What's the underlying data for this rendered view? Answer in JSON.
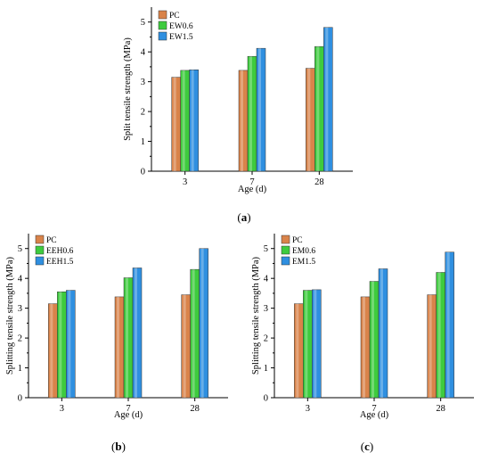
{
  "colors": {
    "PC": "#d9834a",
    "S1": "#3ecb3e",
    "S2": "#2f8fe0",
    "axis": "#000000"
  },
  "chart_data": [
    {
      "type": "bar",
      "panel_label": "(a)",
      "categories": [
        "3",
        "7",
        "28"
      ],
      "xlabel": "Age (d)",
      "ylabel": "Split tensile strength (MPa)",
      "ylim": [
        0,
        5.5
      ],
      "yticks": [
        "0",
        "1",
        "2",
        "3",
        "4",
        "5"
      ],
      "legend": "top-left",
      "series": [
        {
          "name": "PC",
          "values": [
            3.15,
            3.38,
            3.45
          ]
        },
        {
          "name": "EW0.6",
          "values": [
            3.38,
            3.85,
            4.18
          ]
        },
        {
          "name": "EW1.5",
          "values": [
            3.4,
            4.12,
            4.82
          ]
        }
      ]
    },
    {
      "type": "bar",
      "panel_label": "(b)",
      "categories": [
        "3",
        "7",
        "28"
      ],
      "xlabel": "Age (d)",
      "ylabel": "Splitting tensile strength (MPa)",
      "ylim": [
        0,
        5.5
      ],
      "yticks": [
        "0",
        "1",
        "2",
        "3",
        "4",
        "5"
      ],
      "legend": "top-left",
      "series": [
        {
          "name": "PC",
          "values": [
            3.15,
            3.38,
            3.45
          ]
        },
        {
          "name": "EEH0.6",
          "values": [
            3.55,
            4.02,
            4.3
          ]
        },
        {
          "name": "EEH1.5",
          "values": [
            3.6,
            4.35,
            5.0
          ]
        }
      ]
    },
    {
      "type": "bar",
      "panel_label": "(c)",
      "categories": [
        "3",
        "7",
        "28"
      ],
      "xlabel": "Age (d)",
      "ylabel": "Splitting tensile strength (MPa)",
      "ylim": [
        0,
        5.5
      ],
      "yticks": [
        "0",
        "1",
        "2",
        "3",
        "4",
        "5"
      ],
      "legend": "top-left",
      "series": [
        {
          "name": "PC",
          "values": [
            3.15,
            3.38,
            3.45
          ]
        },
        {
          "name": "EM0.6",
          "values": [
            3.6,
            3.9,
            4.2
          ]
        },
        {
          "name": "EM1.5",
          "values": [
            3.62,
            4.32,
            4.88
          ]
        }
      ]
    }
  ]
}
